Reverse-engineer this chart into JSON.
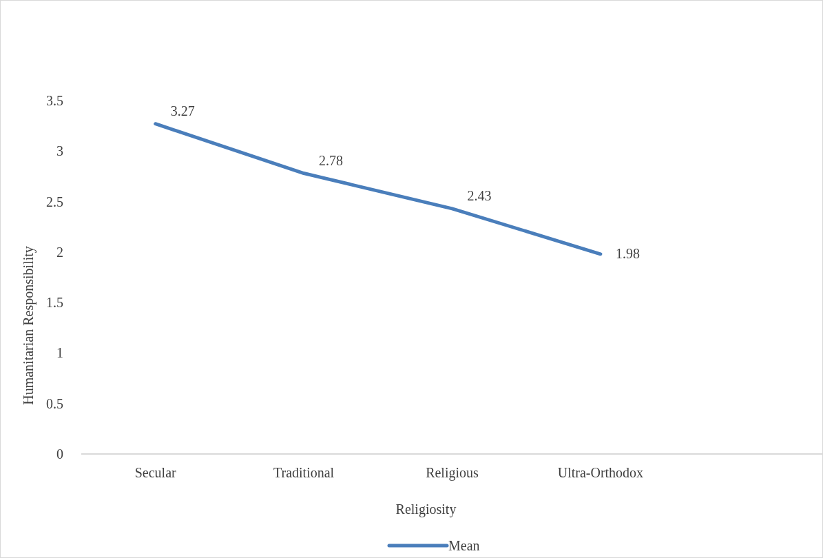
{
  "chart_data": {
    "type": "line",
    "xlabel": "Religiosity",
    "ylabel": "Humanitarian Responsibility",
    "categories": [
      "Secular",
      "Traditional",
      "Religious",
      "Ultra-Orthodox",
      null
    ],
    "series": [
      {
        "name": "Mean",
        "color": "#4a7ebb",
        "values": [
          3.27,
          2.78,
          2.43,
          1.98,
          null
        ]
      }
    ],
    "ylim": [
      0,
      3.5
    ],
    "yticks": [
      0,
      0.5,
      1,
      1.5,
      2,
      2.5,
      3,
      3.5
    ],
    "grid": false,
    "legend": "bottom",
    "data_labels": true,
    "marker": "none"
  }
}
